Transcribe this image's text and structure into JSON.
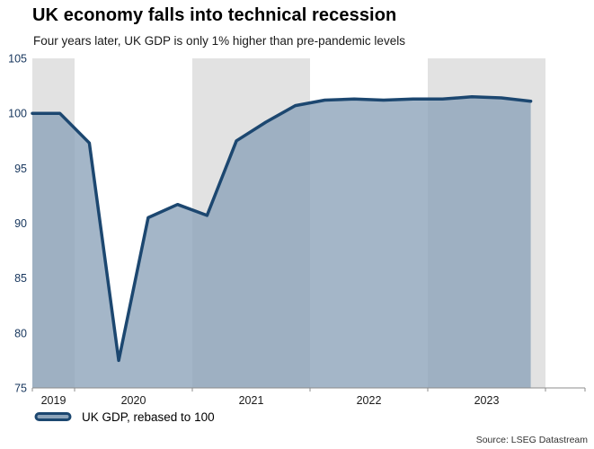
{
  "chart_data": {
    "type": "area",
    "title": "UK economy falls into technical recession",
    "subtitle": "Four years later, UK GDP is only 1% higher than pre-pandemic levels",
    "source": "Source: LSEG Datastream",
    "legend": {
      "position": "bottom-left",
      "label": "UK GDP, rebased to 100"
    },
    "x_quarters": [
      "2019 Q3",
      "2019 Q4",
      "2020 Q1",
      "2020 Q2",
      "2020 Q3",
      "2020 Q4",
      "2021 Q1",
      "2021 Q2",
      "2021 Q3",
      "2021 Q4",
      "2022 Q1",
      "2022 Q2",
      "2022 Q3",
      "2022 Q4",
      "2023 Q1",
      "2023 Q2",
      "2023 Q3",
      "2023 Q4"
    ],
    "series": [
      {
        "name": "UK GDP, rebased to 100",
        "values": [
          100,
          100,
          97.3,
          77.5,
          90.5,
          91.7,
          90.7,
          97.5,
          99.2,
          100.7,
          101.2,
          101.3,
          101.2,
          101.3,
          101.3,
          101.5,
          101.4,
          101.1
        ]
      }
    ],
    "ylim": [
      75,
      105
    ],
    "yticks": [
      75,
      80,
      85,
      90,
      95,
      100,
      105
    ],
    "year_labels": [
      "2019",
      "2020",
      "2021",
      "2022",
      "2023"
    ],
    "shaded_years": [
      "2019",
      "2021",
      "2023"
    ],
    "grid": "off",
    "colors": {
      "line": "#1c4770",
      "area": "#8da4ba",
      "band": "#e2e2e2",
      "axis": "#8c8c8c",
      "ytick_text": "#17365d",
      "xtick_text": "#1a1a1a"
    }
  }
}
